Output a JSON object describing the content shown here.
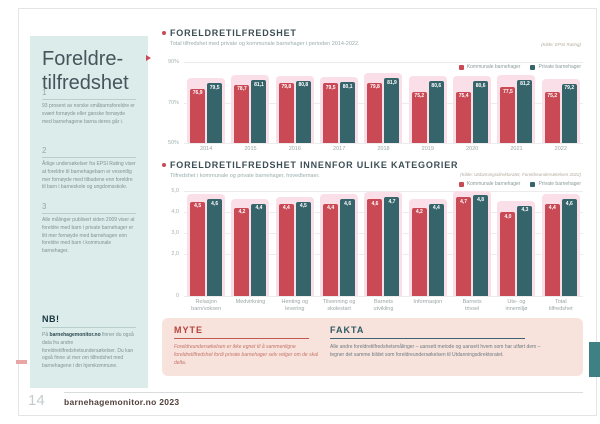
{
  "page": {
    "number": "14",
    "brand": "barnehagemonitor.no 2023"
  },
  "colors": {
    "accent_red": "#c94a55",
    "teal_bar": "#35646b",
    "slate": "#3d4e55",
    "mint": "#dcecea",
    "pink_highlight": "#fadfe8",
    "panel_pink": "#f8e2dc",
    "myte_red": "#b5443c",
    "fakta_teal": "#2f5a64",
    "edge_teal": "#3f8084",
    "muted_teal": "#93a8a6",
    "text_gray": "#7f9392"
  },
  "sidebar": {
    "title": "Foreldre-\ntilfredshet",
    "sections": [
      {
        "num": "1",
        "text": "93 prosent av norske småbarnsforeldre er svært fornøyde eller ganske fornøyde med barnehagene barna deres går i."
      },
      {
        "num": "2",
        "text": "Årlige undersøkelser fra EPSI Rating viser at foreldre til barnehagebarn er vesentlig mer fornøyde med tilbudene enn foreldre til barn i barneskole og ungdomsskole."
      },
      {
        "num": "3",
        "text": "Alle målinger publisert siden 2009 viser at foreldre med barn i private barnehager er litt mer fornøyde med barnehagen enn foreldre med barn i kommunale barnehager."
      }
    ],
    "nb": {
      "title": "NB!",
      "text_before": "På ",
      "link": "barnehagemonitor.no",
      "text_after": " finner du også data fra andre foreldretilfredshetsundersøkelser. Du kan også finne ut mer om tilfredshet med barnehagene i din hjemkommune."
    }
  },
  "myte": {
    "title": "MYTE",
    "text": "Foreldreundersøkelsen er ikke egnet til å sammenligne foreldretilfredshet fordi private barnehager selv velger om de skal delta."
  },
  "fakta": {
    "title": "FAKTA",
    "text": "Alle andre foreldretilfredshetsmålinger – uansett metode og uansett hvem som har utført dem – tegner det samme bildet som foreldreundersøkelsen til Utdanningsdirektoratet."
  },
  "chart_data": [
    {
      "type": "bar",
      "title": "FORELDRETILFREDSHET",
      "subtitle": "Total tilfredshet med private og kommunale barnehager i perioden 2014-2022.",
      "source": "(Kilde: EPSI Rating)",
      "categories": [
        "2014",
        "2015",
        "2016",
        "2017",
        "2018",
        "2019",
        "2020",
        "2021",
        "2022"
      ],
      "series": [
        {
          "name": "Kommunale barnehager",
          "color": "#c94a55",
          "values": [
            76.9,
            78.7,
            79.8,
            79.5,
            79.8,
            75.2,
            75.4,
            77.5,
            75.2
          ]
        },
        {
          "name": "Private barnehager",
          "color": "#35646b",
          "values": [
            79.5,
            81.1,
            80.8,
            80.1,
            81.9,
            80.6,
            80.6,
            81.2,
            79.2
          ]
        }
      ],
      "ylim": [
        50,
        90
      ],
      "yticks": [
        {
          "value": 90,
          "label": "90%"
        },
        {
          "value": 70,
          "label": "70%"
        },
        {
          "value": 50,
          "label": "50%"
        }
      ],
      "label_decimals": 1,
      "highlight_color": "#fadfe8",
      "grid": true,
      "legend_position": "top-right"
    },
    {
      "type": "bar",
      "title": "FORELDRETILFREDSHET INNENFOR ULIKE KATEGORIER",
      "subtitle": "Tilfredshet i kommunale og private barnehager, hovedtemaer.",
      "source": "(Kilde: Utdanningsdirektoratet, Foreldreundersøkelsen 2022)",
      "categories": [
        "Relasjon\nbarn/voksen",
        "Medvirkning",
        "Henting og\nlevering",
        "Tilvenning og\nskolestart",
        "Barnets\nutvikling",
        "Informasjon",
        "Barnets\ntrivsel",
        "Ute- og\ninnemiljø",
        "Total\ntilfredshet"
      ],
      "series": [
        {
          "name": "Kommunale barnehager",
          "color": "#c94a55",
          "values": [
            4.5,
            4.2,
            4.4,
            4.4,
            4.6,
            4.2,
            4.7,
            4.0,
            4.4
          ]
        },
        {
          "name": "Private barnehager",
          "color": "#35646b",
          "values": [
            4.6,
            4.4,
            4.5,
            4.6,
            4.7,
            4.4,
            4.8,
            4.3,
            4.6
          ]
        }
      ],
      "ylim": [
        0,
        5
      ],
      "yticks": [
        {
          "value": 5,
          "label": "5,0"
        },
        {
          "value": 4,
          "label": "4,0"
        },
        {
          "value": 3,
          "label": "3,0"
        },
        {
          "value": 2,
          "label": "2,0"
        },
        {
          "value": 0,
          "label": "0"
        }
      ],
      "label_decimals": 1,
      "highlight_color": "#fadfe8",
      "grid": true,
      "legend_position": "top-right"
    }
  ]
}
